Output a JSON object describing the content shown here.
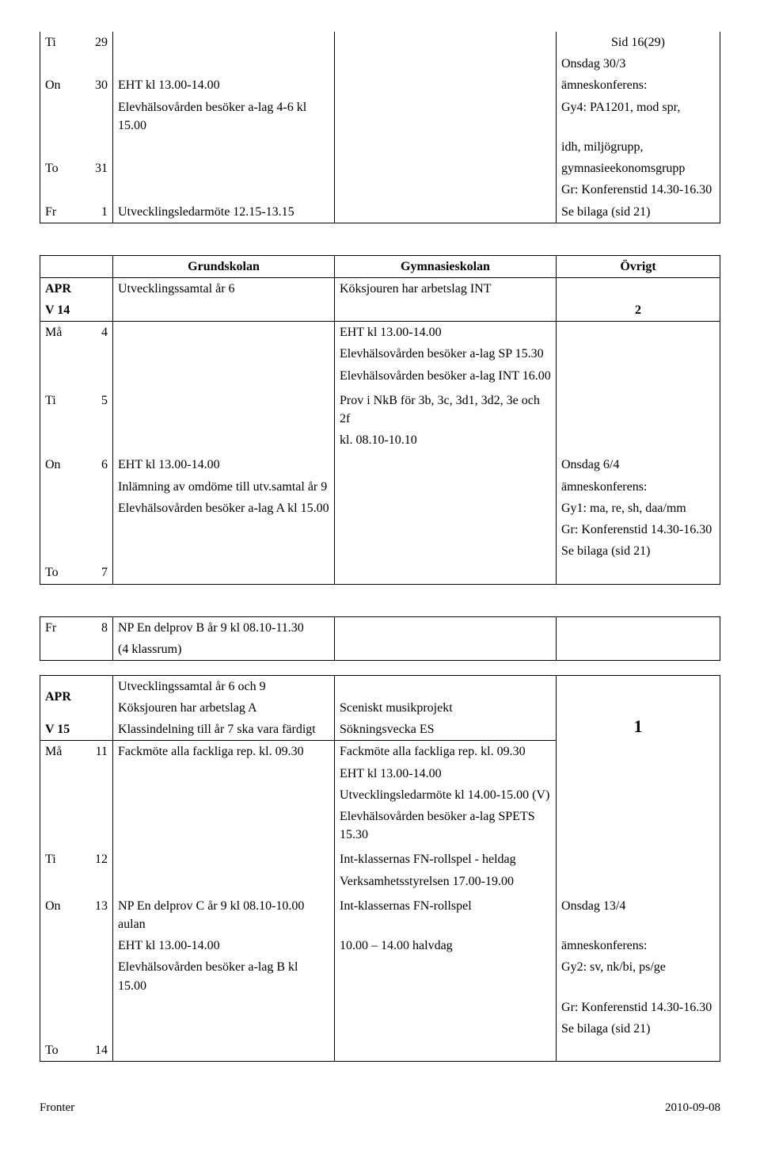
{
  "page_header": "Sid 16(29)",
  "block1": {
    "rows": [
      {
        "day": "Ti",
        "num": "29",
        "a": "",
        "b": "",
        "c": ""
      },
      {
        "day": "",
        "num": "",
        "a": "",
        "b": "",
        "c": "Onsdag 30/3"
      },
      {
        "day": "On",
        "num": "30",
        "a": "EHT kl 13.00-14.00",
        "b": "",
        "c": "ämneskonferens:"
      },
      {
        "day": "",
        "num": "",
        "a": "Elevhälsovården besöker a-lag 4-6 kl 15.00",
        "b": "",
        "c": "Gy4: PA1201, mod spr,"
      },
      {
        "day": "",
        "num": "",
        "a": "",
        "b": "",
        "c": "idh, miljögrupp,"
      },
      {
        "day": "To",
        "num": "31",
        "a": "",
        "b": "",
        "c": "gymnasieekonomsgrupp"
      },
      {
        "day": "",
        "num": "",
        "a": "",
        "b": "",
        "c": "Gr: Konferenstid 14.30-16.30"
      },
      {
        "day": "Fr",
        "num": "1",
        "a": "Utvecklingsledarmöte 12.15-13.15",
        "b": "",
        "c": "Se bilaga (sid 21)"
      }
    ]
  },
  "block2": {
    "headers": {
      "a": "Grundskolan",
      "b": "Gymnasieskolan",
      "c": "Övrigt"
    },
    "month": "APR",
    "week": "V 14",
    "weeknum": "2",
    "month_row_a": "Utvecklingssamtal år 6",
    "month_row_b": "Köksjouren har arbetslag INT",
    "rows": [
      {
        "day": "Må",
        "num": "4",
        "a": "",
        "b": "EHT kl 13.00-14.00",
        "c": ""
      },
      {
        "day": "",
        "num": "",
        "a": "",
        "b": "Elevhälsovården besöker a-lag SP 15.30",
        "c": ""
      },
      {
        "day": "",
        "num": "",
        "a": "",
        "b": "Elevhälsovården besöker a-lag INT 16.00",
        "c": ""
      },
      {
        "day": "",
        "num": "",
        "a": "",
        "b": "",
        "c": ""
      },
      {
        "day": "Ti",
        "num": "5",
        "a": "",
        "b": "Prov i NkB för 3b, 3c, 3d1, 3d2, 3e och 2f",
        "c": ""
      },
      {
        "day": "",
        "num": "",
        "a": "",
        "b": "kl. 08.10-10.10",
        "c": ""
      },
      {
        "day": "",
        "num": "",
        "a": "",
        "b": "",
        "c": ""
      },
      {
        "day": "On",
        "num": "6",
        "a": "EHT kl 13.00-14.00",
        "b": "",
        "c": "Onsdag 6/4"
      },
      {
        "day": "",
        "num": "",
        "a": "Inlämning av omdöme till utv.samtal år 9",
        "b": "",
        "c": "ämneskonferens:"
      },
      {
        "day": "",
        "num": "",
        "a": "Elevhälsovården besöker a-lag A kl 15.00",
        "b": "",
        "c": "Gy1: ma, re, sh, daa/mm"
      },
      {
        "day": "",
        "num": "",
        "a": "",
        "b": "",
        "c": "Gr: Konferenstid 14.30-16.30"
      },
      {
        "day": "",
        "num": "",
        "a": "",
        "b": "",
        "c": "Se bilaga (sid 21)"
      },
      {
        "day": "To",
        "num": "7",
        "a": "",
        "b": "",
        "c": ""
      }
    ]
  },
  "block3": {
    "rows": [
      {
        "day": "Fr",
        "num": "8",
        "a": "NP En delprov B år 9 kl 08.10-11.30",
        "b": "",
        "c": ""
      },
      {
        "day": "",
        "num": "",
        "a": "(4 klassrum)",
        "b": "",
        "c": ""
      }
    ]
  },
  "block4": {
    "month": "APR",
    "week": "V 15",
    "weeknum": "1",
    "top": [
      {
        "a": "Utvecklingssamtal år 6 och 9",
        "b": "",
        "c": ""
      },
      {
        "a": "Köksjouren har arbetslag A",
        "b": "Sceniskt musikprojekt",
        "c": ""
      },
      {
        "a": "Klassindelning till år 7 ska vara färdigt",
        "b": "Sökningsvecka ES",
        "c": ""
      }
    ],
    "rows": [
      {
        "day": "Må",
        "num": "11",
        "a": "Fackmöte alla fackliga rep. kl. 09.30",
        "b": "Fackmöte alla fackliga rep. kl. 09.30",
        "c": ""
      },
      {
        "day": "",
        "num": "",
        "a": "",
        "b": "EHT kl 13.00-14.00",
        "c": ""
      },
      {
        "day": "",
        "num": "",
        "a": "",
        "b": "Utvecklingsledarmöte kl 14.00-15.00 (V)",
        "c": ""
      },
      {
        "day": "",
        "num": "",
        "a": "",
        "b": "Elevhälsovården besöker a-lag SPETS 15.30",
        "c": ""
      },
      {
        "day": "",
        "num": "",
        "a": "",
        "b": "",
        "c": ""
      },
      {
        "day": "Ti",
        "num": "12",
        "a": "",
        "b": "Int-klassernas FN-rollspel - heldag",
        "c": ""
      },
      {
        "day": "",
        "num": "",
        "a": "",
        "b": "Verksamhetsstyrelsen 17.00-19.00",
        "c": ""
      },
      {
        "day": "",
        "num": "",
        "a": "",
        "b": "",
        "c": ""
      },
      {
        "day": "On",
        "num": "13",
        "a": "NP En delprov C år 9 kl 08.10-10.00  aulan",
        "b": "Int-klassernas FN-rollspel",
        "c": "Onsdag 13/4"
      },
      {
        "day": "",
        "num": "",
        "a": "EHT kl 13.00-14.00",
        "b": "10.00 – 14.00 halvdag",
        "c": "ämneskonferens:"
      },
      {
        "day": "",
        "num": "",
        "a": "Elevhälsovården besöker a-lag B kl 15.00",
        "b": "",
        "c": "Gy2: sv, nk/bi, ps/ge"
      },
      {
        "day": "",
        "num": "",
        "a": "",
        "b": "",
        "c": "Gr: Konferenstid 14.30-16.30"
      },
      {
        "day": "",
        "num": "",
        "a": "",
        "b": "",
        "c": "Se bilaga (sid 21)"
      },
      {
        "day": "To",
        "num": "14",
        "a": "",
        "b": "",
        "c": ""
      }
    ]
  },
  "footer_left": "Fronter",
  "footer_right": "2010-09-08"
}
